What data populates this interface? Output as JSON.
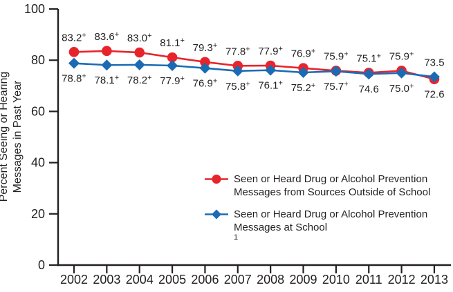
{
  "figure": {
    "background": "#ffffff",
    "text_color": "#231f20",
    "axis_color": "#231f20"
  },
  "y_axis": {
    "title_line1": "Percent Seeing or Hearing",
    "title_line2": "Messages in Past Year"
  },
  "legend": {
    "items": [
      {
        "marker": "red-circle",
        "color": "#e8242b",
        "line1": "Seen or Heard Drug or Alcohol Prevention",
        "line2": "Messages from Sources Outside of School",
        "line2_sup": ""
      },
      {
        "marker": "blue-diamond",
        "color": "#1b6bb4",
        "line1": "Seen or Heard Drug or Alcohol Prevention",
        "line2": "Messages at School",
        "line2_sup": "1"
      }
    ]
  },
  "chart_data": {
    "type": "line",
    "x": [
      "2002",
      "2003",
      "2004",
      "2005",
      "2006",
      "2007",
      "2008",
      "2009",
      "2010",
      "2011",
      "2012",
      "2013"
    ],
    "series": [
      {
        "name": "Seen or Heard Drug or Alcohol Prevention Messages from Sources Outside of School",
        "color": "#e8242b",
        "marker": "circle",
        "values": [
          83.2,
          83.6,
          83.0,
          81.1,
          79.3,
          77.8,
          77.9,
          76.9,
          75.9,
          75.1,
          75.9,
          72.6
        ]
      },
      {
        "name": "Seen or Heard Drug or Alcohol Prevention Messages at School",
        "footnote": "1",
        "color": "#1b6bb4",
        "marker": "diamond",
        "values": [
          78.8,
          78.1,
          78.2,
          77.9,
          76.9,
          75.8,
          76.1,
          75.2,
          75.7,
          74.6,
          75.0,
          73.5
        ]
      }
    ],
    "point_labels": {
      "above": [
        "83.2+",
        "83.6+",
        "83.0+",
        "81.1+",
        "79.3+",
        "77.8+",
        "77.9+",
        "76.9+",
        "75.9+",
        "75.1+",
        "75.9+",
        "73.5"
      ],
      "below": [
        "78.8+",
        "78.1+",
        "78.2+",
        "77.9+",
        "76.9+",
        "75.8+",
        "76.1+",
        "75.2+",
        "75.7+",
        "74.6",
        "75.0+",
        "72.6"
      ]
    },
    "ylabel": "Percent Seeing or Hearing Messages in Past Year",
    "ylim": [
      0,
      100
    ],
    "yticks": [
      0,
      20,
      40,
      60,
      80,
      100
    ],
    "grid": false,
    "legend_position": "inside-right-middle"
  }
}
